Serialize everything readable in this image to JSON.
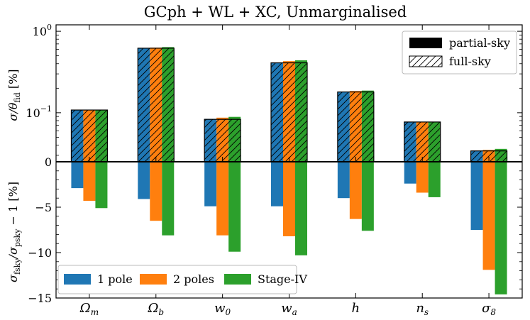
{
  "chart_data": {
    "title": "GCph + WL + XC, Unmarginalised",
    "type": "bar",
    "categories": [
      "Ωm",
      "Ωb",
      "w0",
      "wa",
      "h",
      "ns",
      "σ8"
    ],
    "category_labels": [
      {
        "base": "Ω",
        "sub": "m"
      },
      {
        "base": "Ω",
        "sub": "b"
      },
      {
        "base": "w",
        "sub": "0"
      },
      {
        "base": "w",
        "sub": "a"
      },
      {
        "base": "h",
        "sub": ""
      },
      {
        "base": "n",
        "sub": "s"
      },
      {
        "base": "σ",
        "sub": "8"
      }
    ],
    "series_colors": [
      "#1f77b4",
      "#ff7f0e",
      "#2ca02c"
    ],
    "top_panel": {
      "ylabel": "σ/θ_fid [%]",
      "ylabel_parts": {
        "sigma": "σ",
        "slash": "/θ",
        "sub": "fid",
        "unit": " [%]"
      },
      "yscale": "log",
      "ylim": [
        0.025,
        1.2
      ],
      "yticks": [
        {
          "value": 1.0,
          "base": "10",
          "exp": "0"
        },
        {
          "value": 0.1,
          "base": "10",
          "exp": "−1"
        }
      ],
      "zero_tick_label": "0",
      "legend": [
        {
          "label": "partial-sky",
          "style": "solid-black"
        },
        {
          "label": "full-sky",
          "style": "hatched"
        }
      ],
      "partial_sky": [
        0.108,
        0.62,
        0.083,
        0.41,
        0.18,
        0.077,
        0.034
      ],
      "series": [
        {
          "name": "1 pole",
          "values": [
            0.107,
            0.62,
            0.084,
            0.41,
            0.18,
            0.077,
            0.034
          ]
        },
        {
          "name": "2 poles",
          "values": [
            0.108,
            0.63,
            0.087,
            0.43,
            0.185,
            0.077,
            0.035
          ]
        },
        {
          "name": "Stage-IV",
          "values": [
            0.109,
            0.64,
            0.089,
            0.44,
            0.187,
            0.077,
            0.036
          ]
        }
      ]
    },
    "bottom_panel": {
      "ylabel": "σ_fsky/σ_psky − 1 [%]",
      "ylabel_parts": {
        "s1": "σ",
        "sub1": "fsky",
        "slash": "/σ",
        "sub2": "psky",
        "rest": " − 1 [%]"
      },
      "ylim": [
        -15,
        0
      ],
      "yticks": [
        {
          "value": -5,
          "label": "−5"
        },
        {
          "value": -10,
          "label": "−10"
        },
        {
          "value": -15,
          "label": "−15"
        }
      ],
      "legend": [
        {
          "label": "1 pole"
        },
        {
          "label": "2 poles"
        },
        {
          "label": "Stage-IV"
        }
      ],
      "series": [
        {
          "name": "1 pole",
          "values": [
            -2.9,
            -4.1,
            -4.9,
            -4.9,
            -4.0,
            -2.4,
            -7.5
          ]
        },
        {
          "name": "2 poles",
          "values": [
            -4.3,
            -6.5,
            -8.1,
            -8.2,
            -6.3,
            -3.4,
            -11.9
          ]
        },
        {
          "name": "Stage-IV",
          "values": [
            -5.1,
            -8.1,
            -9.9,
            -10.3,
            -7.6,
            -3.9,
            -14.6
          ]
        }
      ]
    }
  }
}
